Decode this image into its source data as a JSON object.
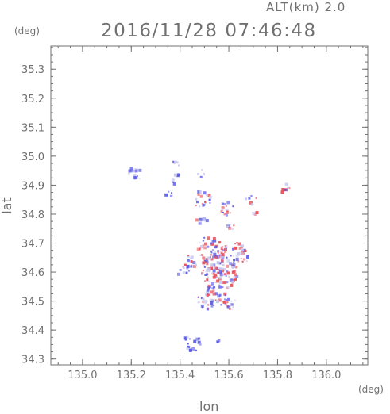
{
  "header": {
    "altitude_label": "ALT(km) 2.0",
    "timestamp": "2016/11/28 07:46:48"
  },
  "chart_data": {
    "type": "heatmap",
    "title": "2016/11/28 07:46:48",
    "xlabel": "lon",
    "ylabel": "lat",
    "xunit": "(deg)",
    "yunit": "(deg)",
    "xlim": [
      134.87,
      136.17
    ],
    "ylim": [
      34.28,
      35.38
    ],
    "xticks": [
      "135.0",
      "135.2",
      "135.4",
      "135.6",
      "135.8",
      "136.0"
    ],
    "xtick_values": [
      135.0,
      135.2,
      135.4,
      135.6,
      135.8,
      136.0
    ],
    "yticks": [
      "34.3",
      "34.4",
      "34.5",
      "34.6",
      "34.7",
      "34.8",
      "34.9",
      "35.0",
      "35.1",
      "35.2",
      "35.3"
    ],
    "ytick_values": [
      34.3,
      34.4,
      34.5,
      34.6,
      34.7,
      34.8,
      34.9,
      35.0,
      35.1,
      35.2,
      35.3
    ],
    "grid": false,
    "colors": {
      "positive": "#e8505a",
      "negative": "#5a5ae8",
      "neutral": "#c8c8f0"
    },
    "clusters": [
      {
        "lon": 135.22,
        "lat": 34.94,
        "r": 0.025,
        "n": 14,
        "sign": "neg"
      },
      {
        "lon": 135.39,
        "lat": 34.98,
        "r": 0.015,
        "n": 6,
        "sign": "neg"
      },
      {
        "lon": 135.39,
        "lat": 34.92,
        "r": 0.02,
        "n": 8,
        "sign": "neg"
      },
      {
        "lon": 135.36,
        "lat": 34.87,
        "r": 0.015,
        "n": 5,
        "sign": "neg"
      },
      {
        "lon": 135.49,
        "lat": 34.94,
        "r": 0.015,
        "n": 5,
        "sign": "neg"
      },
      {
        "lon": 135.49,
        "lat": 34.85,
        "r": 0.03,
        "n": 22,
        "sign": "mix"
      },
      {
        "lon": 135.49,
        "lat": 34.78,
        "r": 0.02,
        "n": 10,
        "sign": "mix"
      },
      {
        "lon": 135.59,
        "lat": 34.82,
        "r": 0.025,
        "n": 16,
        "sign": "mix"
      },
      {
        "lon": 135.61,
        "lat": 34.75,
        "r": 0.015,
        "n": 6,
        "sign": "mix"
      },
      {
        "lon": 135.69,
        "lat": 34.85,
        "r": 0.02,
        "n": 8,
        "sign": "mix"
      },
      {
        "lon": 135.71,
        "lat": 34.8,
        "r": 0.012,
        "n": 4,
        "sign": "pos"
      },
      {
        "lon": 135.83,
        "lat": 34.89,
        "r": 0.018,
        "n": 8,
        "sign": "mix"
      },
      {
        "lon": 135.53,
        "lat": 34.68,
        "r": 0.05,
        "n": 55,
        "sign": "mix"
      },
      {
        "lon": 135.43,
        "lat": 34.63,
        "r": 0.03,
        "n": 18,
        "sign": "mix"
      },
      {
        "lon": 135.41,
        "lat": 34.6,
        "r": 0.015,
        "n": 6,
        "sign": "neg"
      },
      {
        "lon": 135.56,
        "lat": 34.6,
        "r": 0.065,
        "n": 110,
        "sign": "mix"
      },
      {
        "lon": 135.64,
        "lat": 34.65,
        "r": 0.035,
        "n": 28,
        "sign": "mix"
      },
      {
        "lon": 135.52,
        "lat": 34.51,
        "r": 0.04,
        "n": 40,
        "sign": "mix"
      },
      {
        "lon": 135.6,
        "lat": 34.5,
        "r": 0.03,
        "n": 22,
        "sign": "mix"
      },
      {
        "lon": 135.45,
        "lat": 34.355,
        "r": 0.03,
        "n": 22,
        "sign": "neg"
      },
      {
        "lon": 135.56,
        "lat": 34.36,
        "r": 0.01,
        "n": 4,
        "sign": "neg"
      },
      {
        "lon": 135.64,
        "lat": 34.69,
        "r": 0.015,
        "n": 6,
        "sign": "pos"
      }
    ]
  }
}
